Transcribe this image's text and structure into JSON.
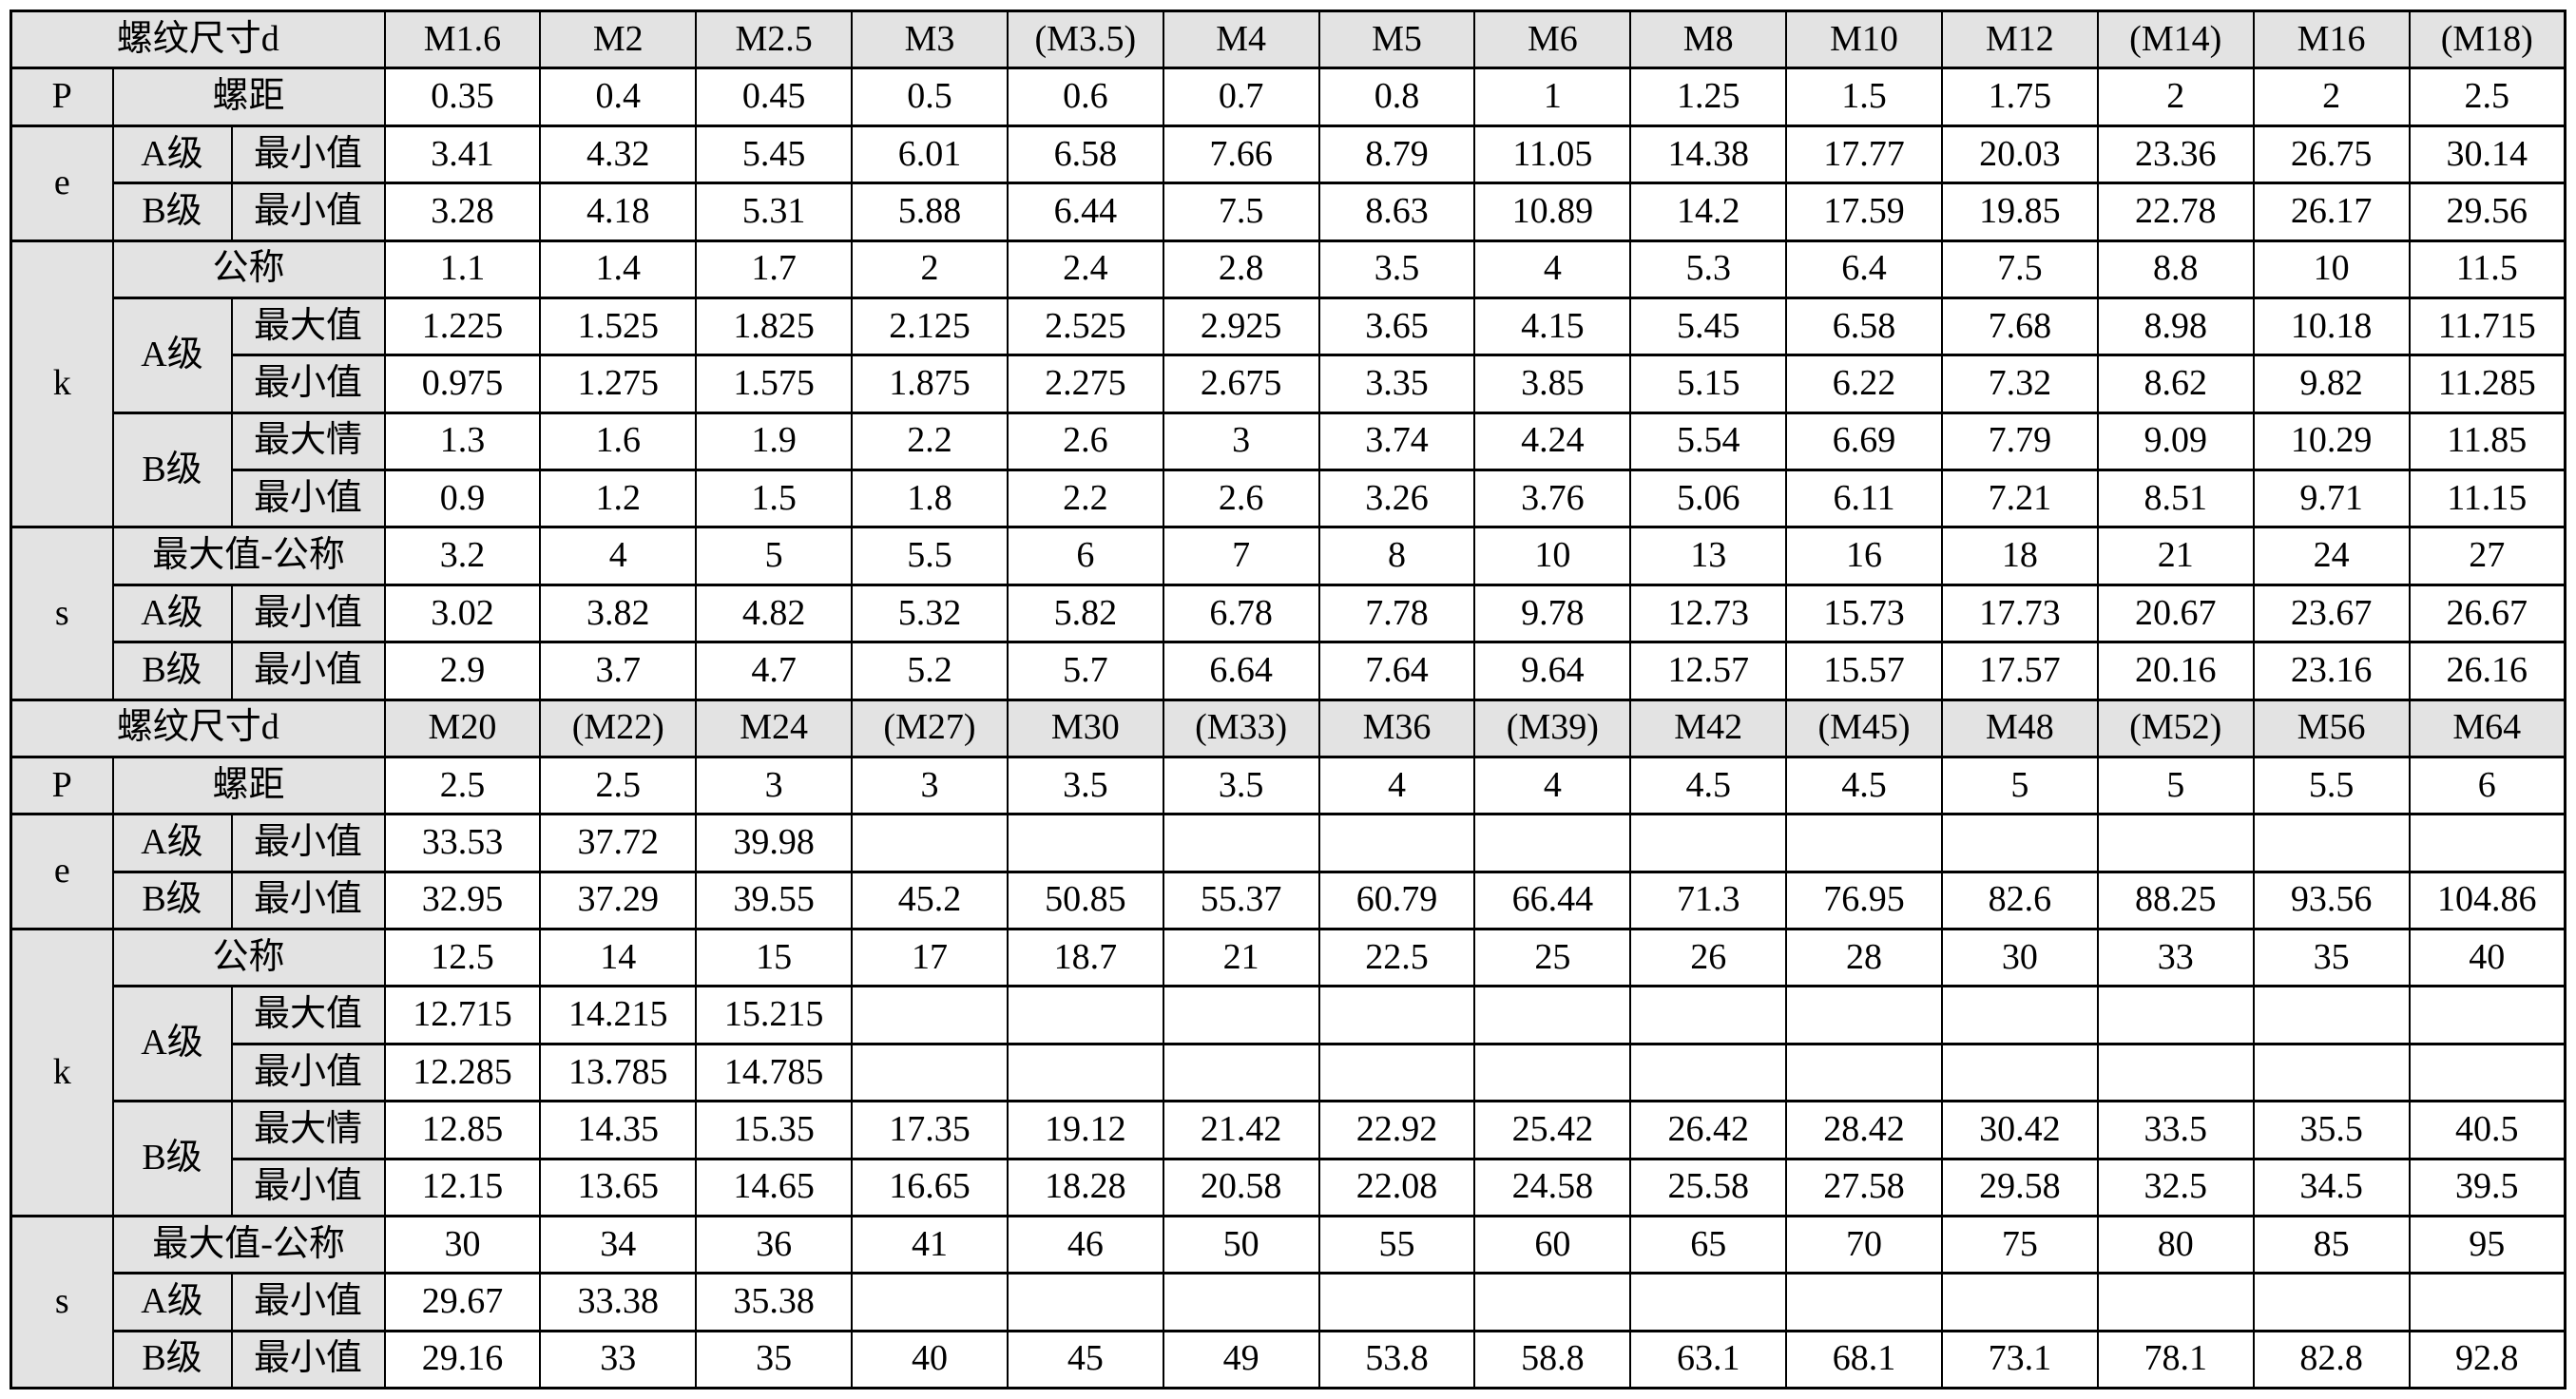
{
  "title": "螺纹尺寸d",
  "labels": {
    "p": "P",
    "pitch": "螺距",
    "e": "e",
    "k": "k",
    "s": "s",
    "gradeA": "A级",
    "gradeB": "B级",
    "min": "最小值",
    "max": "最大值",
    "maxTypo": "最大情",
    "nominal": "公称",
    "maxNominal": "最大值-公称"
  },
  "blocks": [
    {
      "sizes": [
        "M1.6",
        "M2",
        "M2.5",
        "M3",
        "(M3.5)",
        "M4",
        "M5",
        "M6",
        "M8",
        "M10",
        "M12",
        "(M14)",
        "M16",
        "(M18)"
      ],
      "rows": {
        "pitch": [
          "0.35",
          "0.4",
          "0.45",
          "0.5",
          "0.6",
          "0.7",
          "0.8",
          "1",
          "1.25",
          "1.5",
          "1.75",
          "2",
          "2",
          "2.5"
        ],
        "e_a_min": [
          "3.41",
          "4.32",
          "5.45",
          "6.01",
          "6.58",
          "7.66",
          "8.79",
          "11.05",
          "14.38",
          "17.77",
          "20.03",
          "23.36",
          "26.75",
          "30.14"
        ],
        "e_b_min": [
          "3.28",
          "4.18",
          "5.31",
          "5.88",
          "6.44",
          "7.5",
          "8.63",
          "10.89",
          "14.2",
          "17.59",
          "19.85",
          "22.78",
          "26.17",
          "29.56"
        ],
        "k_nominal": [
          "1.1",
          "1.4",
          "1.7",
          "2",
          "2.4",
          "2.8",
          "3.5",
          "4",
          "5.3",
          "6.4",
          "7.5",
          "8.8",
          "10",
          "11.5"
        ],
        "k_a_max": [
          "1.225",
          "1.525",
          "1.825",
          "2.125",
          "2.525",
          "2.925",
          "3.65",
          "4.15",
          "5.45",
          "6.58",
          "7.68",
          "8.98",
          "10.18",
          "11.715"
        ],
        "k_a_min": [
          "0.975",
          "1.275",
          "1.575",
          "1.875",
          "2.275",
          "2.675",
          "3.35",
          "3.85",
          "5.15",
          "6.22",
          "7.32",
          "8.62",
          "9.82",
          "11.285"
        ],
        "k_b_max": [
          "1.3",
          "1.6",
          "1.9",
          "2.2",
          "2.6",
          "3",
          "3.74",
          "4.24",
          "5.54",
          "6.69",
          "7.79",
          "9.09",
          "10.29",
          "11.85"
        ],
        "k_b_min": [
          "0.9",
          "1.2",
          "1.5",
          "1.8",
          "2.2",
          "2.6",
          "3.26",
          "3.76",
          "5.06",
          "6.11",
          "7.21",
          "8.51",
          "9.71",
          "11.15"
        ],
        "s_max": [
          "3.2",
          "4",
          "5",
          "5.5",
          "6",
          "7",
          "8",
          "10",
          "13",
          "16",
          "18",
          "21",
          "24",
          "27"
        ],
        "s_a_min": [
          "3.02",
          "3.82",
          "4.82",
          "5.32",
          "5.82",
          "6.78",
          "7.78",
          "9.78",
          "12.73",
          "15.73",
          "17.73",
          "20.67",
          "23.67",
          "26.67"
        ],
        "s_b_min": [
          "2.9",
          "3.7",
          "4.7",
          "5.2",
          "5.7",
          "6.64",
          "7.64",
          "9.64",
          "12.57",
          "15.57",
          "17.57",
          "20.16",
          "23.16",
          "26.16"
        ]
      }
    },
    {
      "sizes": [
        "M20",
        "(M22)",
        "M24",
        "(M27)",
        "M30",
        "(M33)",
        "M36",
        "(M39)",
        "M42",
        "(M45)",
        "M48",
        "(M52)",
        "M56",
        "M64"
      ],
      "rows": {
        "pitch": [
          "2.5",
          "2.5",
          "3",
          "3",
          "3.5",
          "3.5",
          "4",
          "4",
          "4.5",
          "4.5",
          "5",
          "5",
          "5.5",
          "6"
        ],
        "e_a_min": [
          "33.53",
          "37.72",
          "39.98",
          "",
          "",
          "",
          "",
          "",
          "",
          "",
          "",
          "",
          "",
          ""
        ],
        "e_b_min": [
          "32.95",
          "37.29",
          "39.55",
          "45.2",
          "50.85",
          "55.37",
          "60.79",
          "66.44",
          "71.3",
          "76.95",
          "82.6",
          "88.25",
          "93.56",
          "104.86"
        ],
        "k_nominal": [
          "12.5",
          "14",
          "15",
          "17",
          "18.7",
          "21",
          "22.5",
          "25",
          "26",
          "28",
          "30",
          "33",
          "35",
          "40"
        ],
        "k_a_max": [
          "12.715",
          "14.215",
          "15.215",
          "",
          "",
          "",
          "",
          "",
          "",
          "",
          "",
          "",
          "",
          ""
        ],
        "k_a_min": [
          "12.285",
          "13.785",
          "14.785",
          "",
          "",
          "",
          "",
          "",
          "",
          "",
          "",
          "",
          "",
          ""
        ],
        "k_b_max": [
          "12.85",
          "14.35",
          "15.35",
          "17.35",
          "19.12",
          "21.42",
          "22.92",
          "25.42",
          "26.42",
          "28.42",
          "30.42",
          "33.5",
          "35.5",
          "40.5"
        ],
        "k_b_min": [
          "12.15",
          "13.65",
          "14.65",
          "16.65",
          "18.28",
          "20.58",
          "22.08",
          "24.58",
          "25.58",
          "27.58",
          "29.58",
          "32.5",
          "34.5",
          "39.5"
        ],
        "s_max": [
          "30",
          "34",
          "36",
          "41",
          "46",
          "50",
          "55",
          "60",
          "65",
          "70",
          "75",
          "80",
          "85",
          "95"
        ],
        "s_a_min": [
          "29.67",
          "33.38",
          "35.38",
          "",
          "",
          "",
          "",
          "",
          "",
          "",
          "",
          "",
          "",
          ""
        ],
        "s_b_min": [
          "29.16",
          "33",
          "35",
          "40",
          "45",
          "49",
          "53.8",
          "58.8",
          "63.1",
          "68.1",
          "73.1",
          "78.1",
          "82.8",
          "92.8"
        ]
      }
    }
  ]
}
